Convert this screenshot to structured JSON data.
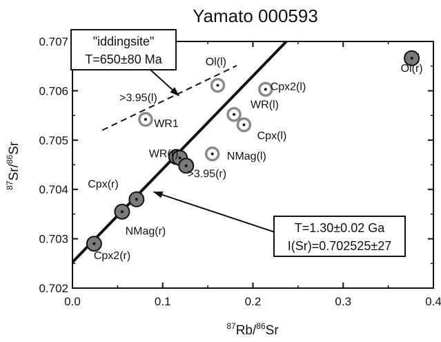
{
  "chart_data": {
    "type": "scatter",
    "title": "Yamato 000593",
    "xlabel": {
      "sup": "87",
      "main": "Rb/",
      "sup2": "86",
      "tail": "Sr"
    },
    "ylabel": {
      "sup": "87",
      "main": "Sr/",
      "sup2": "86",
      "tail": "Sr"
    },
    "xlim": [
      0.0,
      0.4
    ],
    "ylim": [
      0.702,
      0.707
    ],
    "x_ticks": [
      "0.0",
      "0.1",
      "0.2",
      "0.3",
      "0.4"
    ],
    "y_ticks": [
      "0.702",
      "0.703",
      "0.704",
      "0.705",
      "0.706",
      "0.707"
    ],
    "residue_points": [
      {
        "x": 0.376,
        "y": 0.70666
      },
      {
        "x": 0.115,
        "y": 0.70466
      },
      {
        "x": 0.119,
        "y": 0.70464
      },
      {
        "x": 0.126,
        "y": 0.70448
      },
      {
        "x": 0.071,
        "y": 0.7038
      },
      {
        "x": 0.055,
        "y": 0.70355
      },
      {
        "x": 0.024,
        "y": 0.7029
      }
    ],
    "leachate_points": [
      {
        "x": 0.081,
        "y": 0.70542
      },
      {
        "x": 0.161,
        "y": 0.70611
      },
      {
        "x": 0.214,
        "y": 0.70603
      },
      {
        "x": 0.179,
        "y": 0.70552
      },
      {
        "x": 0.19,
        "y": 0.70531
      },
      {
        "x": 0.155,
        "y": 0.70472
      }
    ],
    "point_labels": [
      {
        "text": "Ol(r)",
        "x": 0.376,
        "y": 0.70647
      },
      {
        "text": "Ol(l)",
        "x": 0.159,
        "y": 0.7066
      },
      {
        "text": "Cpx2(l)",
        "x": 0.239,
        "y": 0.7061
      },
      {
        "text": ">3.95(l)",
        "x": 0.073,
        "y": 0.70587
      },
      {
        "text": "WR(l)",
        "x": 0.213,
        "y": 0.70573
      },
      {
        "text": "Cpx(l)",
        "x": 0.221,
        "y": 0.7051
      },
      {
        "text": "WR1",
        "x": 0.104,
        "y": 0.70535
      },
      {
        "text": "WR(r)",
        "x": 0.101,
        "y": 0.70474
      },
      {
        "text": "NMag(l)",
        "x": 0.193,
        "y": 0.70469
      },
      {
        "text": ">3.95(r)",
        "x": 0.149,
        "y": 0.70433
      },
      {
        "text": "Cpx(r)",
        "x": 0.034,
        "y": 0.70412
      },
      {
        "text": "NMag(r)",
        "x": 0.081,
        "y": 0.70317
      },
      {
        "text": "Cpx2(r)",
        "x": 0.044,
        "y": 0.70267
      }
    ],
    "isochron_line": {
      "x": [
        0.0,
        0.245
      ],
      "y": [
        0.702525,
        0.70715
      ]
    },
    "dashed_line": {
      "x": [
        0.033,
        0.182
      ],
      "y": [
        0.7052,
        0.70651
      ]
    },
    "ol_error_bar": {
      "x": [
        0.369,
        0.383
      ],
      "y": 0.70666
    },
    "annotations": [
      {
        "lines": [
          "\"iddingsite\"",
          "T=650±80 Ma"
        ],
        "arrow_to": {
          "x": 0.118,
          "y": 0.7059
        }
      },
      {
        "lines": [
          "T=1.30±0.02 Ga",
          "I(Sr)=0.702525±27"
        ],
        "arrow_to": {
          "x": 0.09,
          "y": 0.70395
        }
      }
    ]
  }
}
